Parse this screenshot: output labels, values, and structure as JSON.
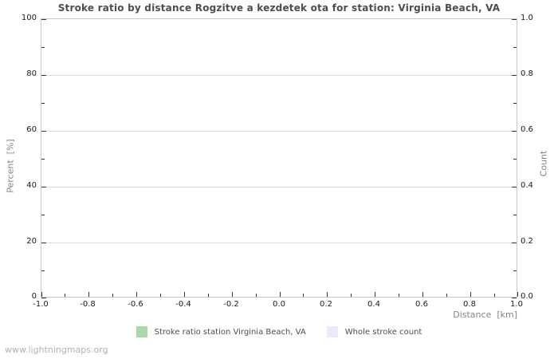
{
  "title": "Stroke ratio by distance Rogzitve a kezdetek ota for station: Virginia Beach, VA",
  "watermark": "www.lightningmaps.org",
  "axes": {
    "left_label": "Percent  [%]",
    "right_label": "Count",
    "x_label": "Distance  [km]"
  },
  "legend": {
    "items": [
      {
        "label": "Stroke ratio station Virginia Beach, VA",
        "color": "#a9d9a9"
      },
      {
        "label": "Whole stroke count",
        "color": "#e9e9f8"
      }
    ]
  },
  "colors": {
    "plot_border": "#c9c9c9",
    "gridline": "#d9d9d9",
    "tick_mark": "#333333",
    "tick_label": "#1a1a1a",
    "title_text": "#4d4d4d",
    "axis_unit_text": "#858585",
    "watermark_text": "#b3b3b3"
  },
  "chart_data": {
    "type": "bar",
    "title": "Stroke ratio by distance Rogzitve a kezdetek ota for station: Virginia Beach, VA",
    "xlabel": "Distance [km]",
    "ylabel_left": "Percent [%]",
    "ylabel_right": "Count",
    "xlim": [
      -1.0,
      1.0
    ],
    "ylim_left": [
      0,
      100
    ],
    "ylim_right": [
      0.0,
      1.0
    ],
    "x_major_ticks": [
      -1.0,
      -0.8,
      -0.6,
      -0.4,
      -0.2,
      0.0,
      0.2,
      0.4,
      0.6,
      0.8,
      1.0
    ],
    "x_tick_labels": [
      "-1.0",
      "-0.8",
      "-0.6",
      "-0.4",
      "-0.2",
      "0.0",
      "0.2",
      "0.4",
      "0.6",
      "0.8",
      "1.0"
    ],
    "x_minor_ticks": [
      -0.9,
      -0.7,
      -0.5,
      -0.3,
      -0.1,
      0.1,
      0.3,
      0.5,
      0.7,
      0.9
    ],
    "y_left_major_ticks": [
      0,
      20,
      40,
      60,
      80,
      100
    ],
    "y_left_tick_labels": [
      "0",
      "20",
      "40",
      "60",
      "80",
      "100"
    ],
    "y_left_minor_ticks": [
      10,
      30,
      50,
      70,
      90
    ],
    "y_right_major_ticks": [
      0.0,
      0.2,
      0.4,
      0.6,
      0.8,
      1.0
    ],
    "y_right_tick_labels": [
      "0.0",
      "0.2",
      "0.4",
      "0.6",
      "0.8",
      "1.0"
    ],
    "y_right_minor_ticks": [
      0.1,
      0.3,
      0.5,
      0.7,
      0.9
    ],
    "grid": "horizontal-major-only",
    "legend_position": "bottom-center",
    "series": [
      {
        "name": "Stroke ratio station Virginia Beach, VA",
        "type": "bar",
        "color": "#a9d9a9",
        "x": [],
        "values": []
      },
      {
        "name": "Whole stroke count",
        "type": "bar",
        "color": "#e9e9f8",
        "x": [],
        "values": []
      }
    ]
  }
}
